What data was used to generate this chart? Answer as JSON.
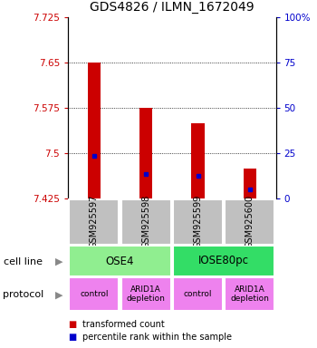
{
  "title": "GDS4826 / ILMN_1672049",
  "samples": [
    "GSM925597",
    "GSM925598",
    "GSM925599",
    "GSM925600"
  ],
  "bar_values": [
    7.65,
    7.575,
    7.55,
    7.475
  ],
  "bar_base": 7.425,
  "blue_marker_values": [
    7.495,
    7.465,
    7.462,
    7.44
  ],
  "y_left_ticks": [
    7.425,
    7.5,
    7.575,
    7.65,
    7.725
  ],
  "y_left_labels": [
    "7.425",
    "7.5",
    "7.575",
    "7.65",
    "7.725"
  ],
  "y_right_ticks": [
    0,
    25,
    50,
    75,
    100
  ],
  "y_right_labels": [
    "0",
    "25",
    "50",
    "75",
    "100%"
  ],
  "ylim": [
    7.425,
    7.725
  ],
  "cell_line_labels": [
    "OSE4",
    "IOSE80pc"
  ],
  "cell_line_spans": [
    [
      0,
      2
    ],
    [
      2,
      4
    ]
  ],
  "cell_line_colors": [
    "#90EE90",
    "#33DD66"
  ],
  "protocol_labels": [
    "control",
    "ARID1A\ndepletion",
    "control",
    "ARID1A\ndepletion"
  ],
  "protocol_color": "#EE82EE",
  "bar_color": "#CC0000",
  "blue_color": "#0000CC",
  "sample_box_color": "#C0C0C0",
  "left_tick_color": "#CC0000",
  "right_tick_color": "#0000CC",
  "legend_red_label": "transformed count",
  "legend_blue_label": "percentile rank within the sample",
  "cell_line_row_label": "cell line",
  "protocol_row_label": "protocol",
  "bar_width": 0.25
}
